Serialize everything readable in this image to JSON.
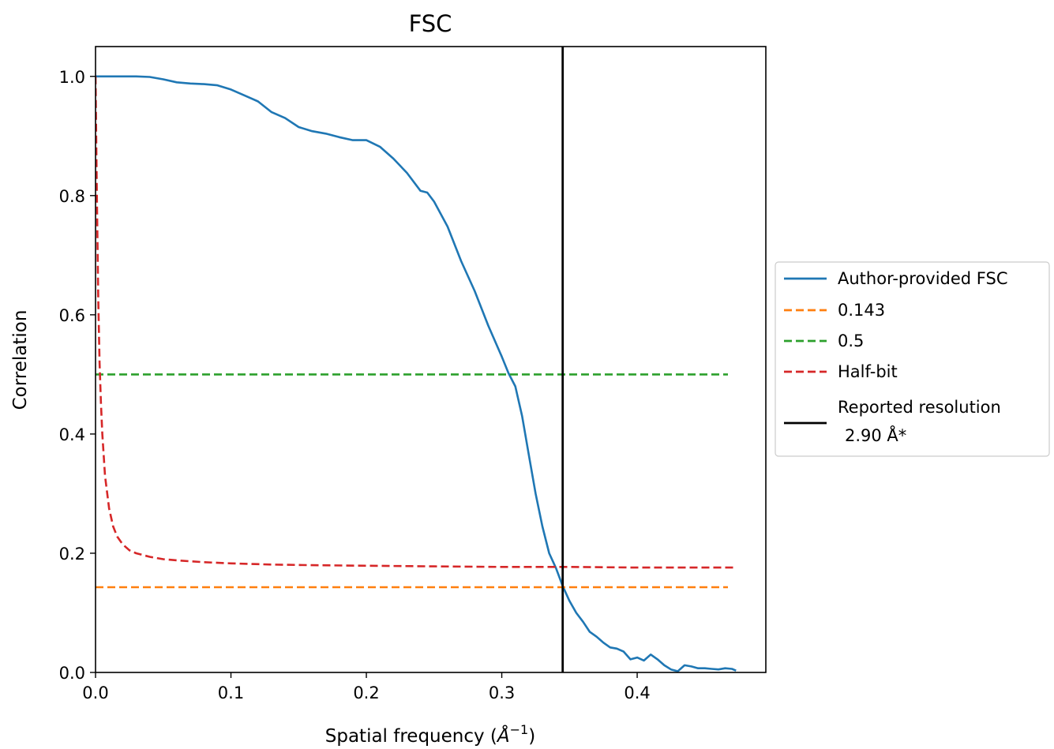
{
  "chart_data": {
    "type": "line",
    "title": "FSC",
    "xlabel": "Spatial frequency (",
    "xlabel_symbol": "Å",
    "xlabel_exponent": "−1",
    "xlabel_close": ")",
    "ylabel": "Correlation",
    "xlim": [
      0.0,
      0.495
    ],
    "ylim": [
      0.0,
      1.05
    ],
    "xticks": [
      0.0,
      0.1,
      0.2,
      0.3,
      0.4
    ],
    "xtick_labels": [
      "0.0",
      "0.1",
      "0.2",
      "0.3",
      "0.4"
    ],
    "yticks": [
      0.0,
      0.2,
      0.4,
      0.6,
      0.8,
      1.0
    ],
    "ytick_labels": [
      "0.0",
      "0.2",
      "0.4",
      "0.6",
      "0.8",
      "1.0"
    ],
    "grid": false,
    "legend_position": "outside-right",
    "series": [
      {
        "name": "Author-provided FSC",
        "color": "#1f77b4",
        "style": "solid",
        "x": [
          0.0,
          0.01,
          0.02,
          0.03,
          0.04,
          0.05,
          0.06,
          0.07,
          0.08,
          0.09,
          0.1,
          0.11,
          0.12,
          0.13,
          0.14,
          0.15,
          0.16,
          0.17,
          0.18,
          0.19,
          0.2,
          0.21,
          0.22,
          0.23,
          0.24,
          0.245,
          0.25,
          0.26,
          0.27,
          0.28,
          0.29,
          0.3,
          0.305,
          0.31,
          0.315,
          0.32,
          0.325,
          0.33,
          0.335,
          0.34,
          0.345,
          0.35,
          0.355,
          0.36,
          0.365,
          0.37,
          0.375,
          0.38,
          0.385,
          0.39,
          0.395,
          0.4,
          0.405,
          0.41,
          0.415,
          0.42,
          0.425,
          0.43,
          0.435,
          0.44,
          0.445,
          0.45,
          0.455,
          0.46,
          0.465,
          0.47,
          0.473
        ],
        "y": [
          1.0,
          1.0,
          1.0,
          1.0,
          0.999,
          0.995,
          0.99,
          0.988,
          0.987,
          0.985,
          0.978,
          0.968,
          0.958,
          0.94,
          0.93,
          0.915,
          0.908,
          0.904,
          0.898,
          0.893,
          0.893,
          0.882,
          0.862,
          0.838,
          0.808,
          0.805,
          0.79,
          0.748,
          0.69,
          0.64,
          0.582,
          0.53,
          0.502,
          0.48,
          0.43,
          0.365,
          0.3,
          0.245,
          0.2,
          0.175,
          0.145,
          0.12,
          0.1,
          0.085,
          0.068,
          0.06,
          0.05,
          0.042,
          0.04,
          0.035,
          0.022,
          0.025,
          0.02,
          0.03,
          0.022,
          0.012,
          0.005,
          0.002,
          0.012,
          0.01,
          0.007,
          0.007,
          0.006,
          0.005,
          0.007,
          0.006,
          0.003
        ]
      },
      {
        "name": "0.143",
        "color": "#ff7f0e",
        "style": "dashed",
        "x": [
          0.0,
          0.467
        ],
        "y": [
          0.143,
          0.143
        ]
      },
      {
        "name": "0.5",
        "color": "#2ca02c",
        "style": "dashed",
        "x": [
          0.0,
          0.467
        ],
        "y": [
          0.5,
          0.5
        ]
      },
      {
        "name": "Half-bit",
        "color": "#d62728",
        "style": "dashed",
        "x": [
          0.0,
          0.001,
          0.002,
          0.003,
          0.004,
          0.005,
          0.007,
          0.01,
          0.013,
          0.016,
          0.02,
          0.025,
          0.03,
          0.04,
          0.05,
          0.06,
          0.08,
          0.1,
          0.13,
          0.16,
          0.2,
          0.25,
          0.3,
          0.35,
          0.4,
          0.45,
          0.473
        ],
        "y": [
          1.0,
          0.8,
          0.63,
          0.52,
          0.45,
          0.4,
          0.33,
          0.275,
          0.245,
          0.228,
          0.215,
          0.205,
          0.2,
          0.194,
          0.19,
          0.188,
          0.185,
          0.183,
          0.181,
          0.18,
          0.179,
          0.178,
          0.177,
          0.177,
          0.176,
          0.176,
          0.176
        ]
      },
      {
        "name": "Reported resolution",
        "name_line2": "2.90 Å*",
        "color": "#000000",
        "style": "solid",
        "x": [
          0.345,
          0.345
        ],
        "y": [
          0.0,
          1.05
        ]
      }
    ]
  }
}
